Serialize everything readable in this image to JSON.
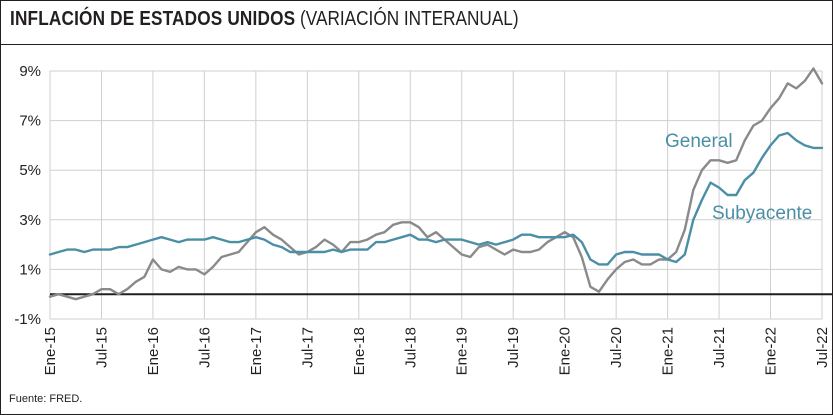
{
  "title": {
    "bold": "INFLACIÓN DE ESTADOS UNIDOS",
    "light": "(VARIACIÓN INTERANUAL)"
  },
  "source": "Fuente: FRED.",
  "colors": {
    "general": "#8a8a8a",
    "subyacente": "#4a8fa6",
    "grid": "#cfcfcf",
    "zero_line": "#231f20"
  },
  "chart_data": {
    "type": "line",
    "title": "INFLACIÓN DE ESTADOS UNIDOS (VARIACIÓN INTERANUAL)",
    "xlabel": "",
    "ylabel": "",
    "ylim": [
      -1,
      9
    ],
    "yticks": [
      -1,
      1,
      3,
      5,
      7,
      9
    ],
    "ytick_labels": [
      "-1%",
      "1%",
      "3%",
      "5%",
      "7%",
      "9%"
    ],
    "grid": true,
    "x_start": "2015-01",
    "x_end": "2022-07",
    "x_tick_labels": [
      "Ene-15",
      "Jul-15",
      "Ene-16",
      "Jul-16",
      "Ene-17",
      "Jul-17",
      "Ene-18",
      "Jul-18",
      "Ene-19",
      "Jul-19",
      "Ene-20",
      "Jul-20",
      "Ene-21",
      "Jul-21",
      "Ene-22",
      "Jul-22"
    ],
    "series": [
      {
        "name": "General",
        "values": [
          -0.1,
          0.0,
          -0.1,
          -0.2,
          -0.1,
          0.0,
          0.2,
          0.2,
          0.0,
          0.2,
          0.5,
          0.7,
          1.4,
          1.0,
          0.9,
          1.1,
          1.0,
          1.0,
          0.8,
          1.1,
          1.5,
          1.6,
          1.7,
          2.1,
          2.5,
          2.7,
          2.4,
          2.2,
          1.9,
          1.6,
          1.7,
          1.9,
          2.2,
          2.0,
          1.7,
          2.1,
          2.1,
          2.2,
          2.4,
          2.5,
          2.8,
          2.9,
          2.9,
          2.7,
          2.3,
          2.5,
          2.2,
          1.9,
          1.6,
          1.5,
          1.9,
          2.0,
          1.8,
          1.6,
          1.8,
          1.7,
          1.7,
          1.8,
          2.1,
          2.3,
          2.5,
          2.3,
          1.5,
          0.3,
          0.1,
          0.6,
          1.0,
          1.3,
          1.4,
          1.2,
          1.2,
          1.4,
          1.4,
          1.7,
          2.6,
          4.2,
          5.0,
          5.4,
          5.4,
          5.3,
          5.4,
          6.2,
          6.8,
          7.0,
          7.5,
          7.9,
          8.5,
          8.3,
          8.6,
          9.1,
          8.5
        ],
        "end_label": "General"
      },
      {
        "name": "Subyacente",
        "values": [
          1.6,
          1.7,
          1.8,
          1.8,
          1.7,
          1.8,
          1.8,
          1.8,
          1.9,
          1.9,
          2.0,
          2.1,
          2.2,
          2.3,
          2.2,
          2.1,
          2.2,
          2.2,
          2.2,
          2.3,
          2.2,
          2.1,
          2.1,
          2.2,
          2.3,
          2.2,
          2.0,
          1.9,
          1.7,
          1.7,
          1.7,
          1.7,
          1.7,
          1.8,
          1.7,
          1.8,
          1.8,
          1.8,
          2.1,
          2.1,
          2.2,
          2.3,
          2.4,
          2.2,
          2.2,
          2.1,
          2.2,
          2.2,
          2.2,
          2.1,
          2.0,
          2.1,
          2.0,
          2.1,
          2.2,
          2.4,
          2.4,
          2.3,
          2.3,
          2.3,
          2.3,
          2.4,
          2.1,
          1.4,
          1.2,
          1.2,
          1.6,
          1.7,
          1.7,
          1.6,
          1.6,
          1.6,
          1.4,
          1.3,
          1.6,
          3.0,
          3.8,
          4.5,
          4.3,
          4.0,
          4.0,
          4.6,
          4.9,
          5.5,
          6.0,
          6.4,
          6.5,
          6.2,
          6.0,
          5.9,
          5.9
        ],
        "end_label": "Subyacente"
      }
    ]
  }
}
